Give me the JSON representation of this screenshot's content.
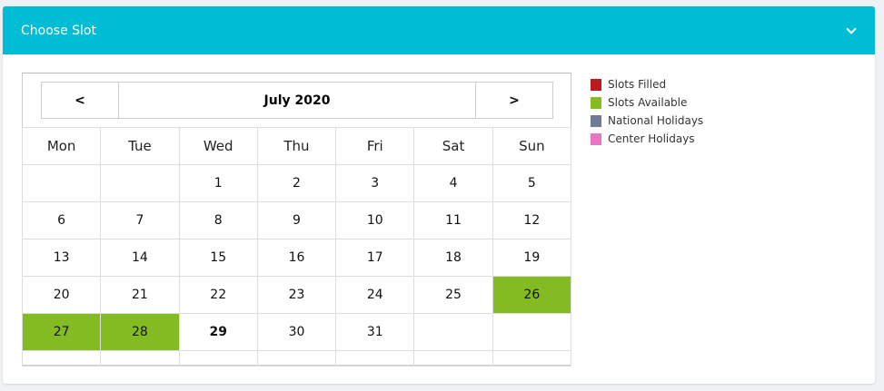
{
  "header": {
    "title": "Choose Slot"
  },
  "calendar": {
    "prev": "<",
    "next": ">",
    "month": "July 2020",
    "weekdays": [
      "Mon",
      "Tue",
      "Wed",
      "Thu",
      "Fri",
      "Sat",
      "Sun"
    ],
    "weeks": [
      [
        "",
        "",
        "1",
        "2",
        "3",
        "4",
        "5"
      ],
      [
        "6",
        "7",
        "8",
        "9",
        "10",
        "11",
        "12"
      ],
      [
        "13",
        "14",
        "15",
        "16",
        "17",
        "18",
        "19"
      ],
      [
        "20",
        "21",
        "22",
        "23",
        "24",
        "25",
        "26"
      ],
      [
        "27",
        "28",
        "29",
        "30",
        "31",
        "",
        ""
      ]
    ],
    "available_days": [
      "26",
      "27",
      "28"
    ],
    "today": "29"
  },
  "legend": [
    {
      "label": "Slots Filled",
      "color": "#c0181f"
    },
    {
      "label": "Slots Available",
      "color": "#85bb22"
    },
    {
      "label": "National Holidays",
      "color": "#6e7d94"
    },
    {
      "label": "Center Holidays",
      "color": "#e876c0"
    }
  ]
}
